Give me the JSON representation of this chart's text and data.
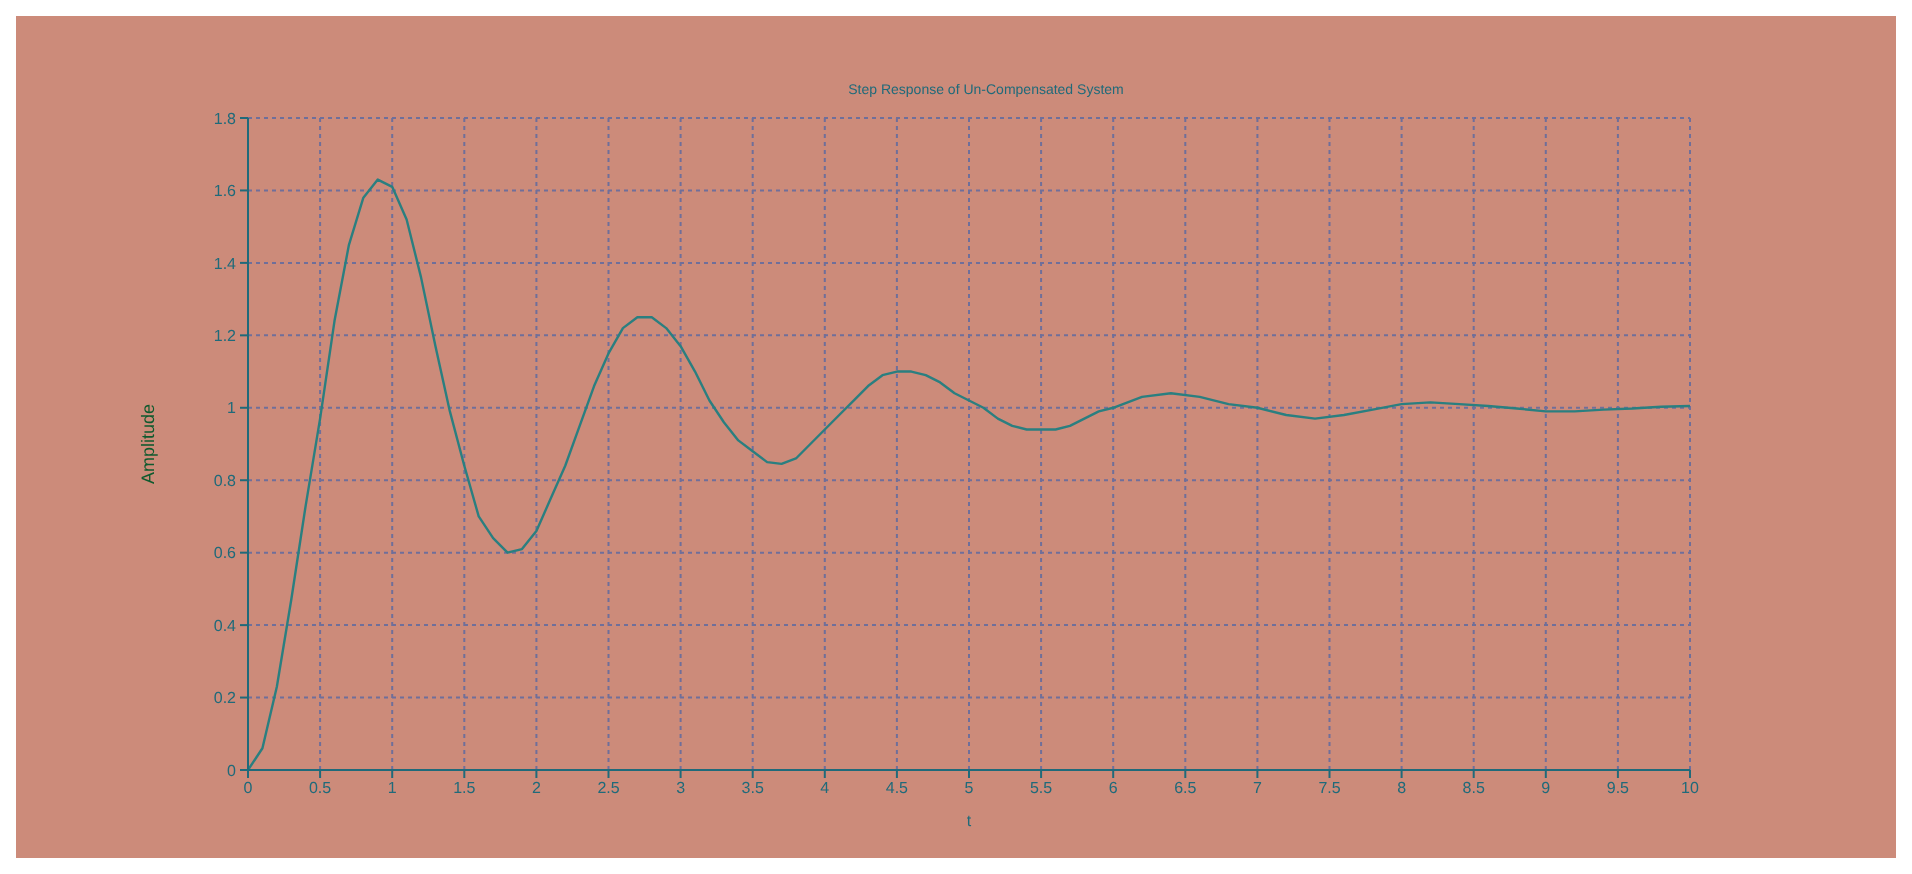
{
  "chart_data": {
    "type": "line",
    "title": "Step Response of Un-Compensated System",
    "xlabel": "t",
    "ylabel": "Amplitude",
    "x": [
      0,
      0.1,
      0.2,
      0.3,
      0.4,
      0.5,
      0.6,
      0.7,
      0.8,
      0.9,
      1.0,
      1.1,
      1.2,
      1.3,
      1.4,
      1.5,
      1.6,
      1.7,
      1.8,
      1.9,
      2.0,
      2.1,
      2.2,
      2.3,
      2.4,
      2.5,
      2.6,
      2.7,
      2.8,
      2.9,
      3.0,
      3.1,
      3.2,
      3.3,
      3.4,
      3.5,
      3.6,
      3.7,
      3.8,
      3.9,
      4.0,
      4.1,
      4.2,
      4.3,
      4.4,
      4.5,
      4.6,
      4.7,
      4.8,
      4.9,
      5.0,
      5.1,
      5.2,
      5.3,
      5.4,
      5.5,
      5.6,
      5.7,
      5.8,
      5.9,
      6.0,
      6.2,
      6.4,
      6.6,
      6.8,
      7.0,
      7.2,
      7.4,
      7.6,
      7.8,
      8.0,
      8.2,
      8.4,
      8.6,
      8.8,
      9.0,
      9.2,
      9.4,
      9.6,
      9.8,
      10
    ],
    "series": [
      {
        "color": "#2a7f80",
        "values": [
          0,
          0.06,
          0.23,
          0.47,
          0.73,
          0.97,
          1.24,
          1.45,
          1.58,
          1.63,
          1.61,
          1.52,
          1.36,
          1.17,
          0.99,
          0.84,
          0.7,
          0.64,
          0.6,
          0.61,
          0.66,
          0.75,
          0.84,
          0.95,
          1.06,
          1.15,
          1.22,
          1.25,
          1.25,
          1.22,
          1.17,
          1.1,
          1.02,
          0.96,
          0.91,
          0.88,
          0.85,
          0.845,
          0.86,
          0.9,
          0.94,
          0.98,
          1.02,
          1.06,
          1.09,
          1.1,
          1.1,
          1.09,
          1.07,
          1.04,
          1.02,
          1.0,
          0.97,
          0.95,
          0.94,
          0.94,
          0.94,
          0.95,
          0.97,
          0.99,
          1.0,
          1.03,
          1.04,
          1.03,
          1.01,
          1.0,
          0.98,
          0.97,
          0.98,
          0.995,
          1.01,
          1.015,
          1.01,
          1.005,
          0.998,
          0.99,
          0.99,
          0.995,
          0.998,
          1.003,
          1.005
        ]
      }
    ],
    "xlim": [
      0,
      10
    ],
    "xticks": [
      0,
      0.5,
      1,
      1.5,
      2,
      2.5,
      3,
      3.5,
      4,
      4.5,
      5,
      5.5,
      6,
      6.5,
      7,
      7.5,
      8,
      8.5,
      9,
      9.5,
      10
    ],
    "ylim": [
      0,
      1.8
    ],
    "yticks": [
      0,
      0.2,
      0.4,
      0.6,
      0.8,
      1,
      1.2,
      1.4,
      1.6,
      1.8
    ],
    "grid": true,
    "marker": "none",
    "line_style": "solid",
    "legend": false
  }
}
